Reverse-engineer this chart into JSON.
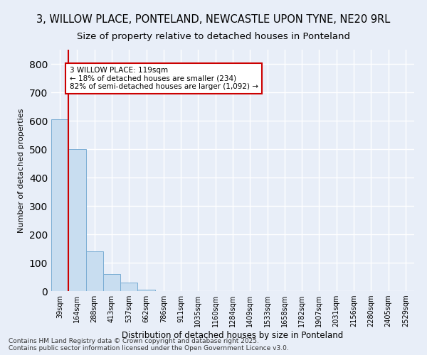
{
  "title": "3, WILLOW PLACE, PONTELAND, NEWCASTLE UPON TYNE, NE20 9RL",
  "subtitle": "Size of property relative to detached houses in Ponteland",
  "xlabel": "Distribution of detached houses by size in Ponteland",
  "ylabel": "Number of detached properties",
  "bins": [
    "39sqm",
    "164sqm",
    "288sqm",
    "413sqm",
    "537sqm",
    "662sqm",
    "786sqm",
    "911sqm",
    "1035sqm",
    "1160sqm",
    "1284sqm",
    "1409sqm",
    "1533sqm",
    "1658sqm",
    "1782sqm",
    "1907sqm",
    "2031sqm",
    "2156sqm",
    "2280sqm",
    "2405sqm",
    "2529sqm"
  ],
  "values": [
    605,
    500,
    140,
    60,
    30,
    5,
    0,
    0,
    0,
    0,
    0,
    0,
    0,
    0,
    0,
    0,
    0,
    0,
    0,
    0,
    0
  ],
  "bar_color": "#c8ddf0",
  "bar_edge_color": "#7aadd4",
  "background_color": "#e8eef8",
  "grid_color": "#ffffff",
  "property_line_x": 0.5,
  "property_line_color": "#cc0000",
  "annotation_text": "3 WILLOW PLACE: 119sqm\n← 18% of detached houses are smaller (234)\n82% of semi-detached houses are larger (1,092) →",
  "annotation_box_color": "#ffffff",
  "annotation_border_color": "#cc0000",
  "ylim": [
    0,
    850
  ],
  "yticks": [
    0,
    100,
    200,
    300,
    400,
    500,
    600,
    700,
    800
  ],
  "footnote": "Contains HM Land Registry data © Crown copyright and database right 2025.\nContains public sector information licensed under the Open Government Licence v3.0.",
  "title_fontsize": 10.5,
  "subtitle_fontsize": 9.5,
  "annotation_fontsize": 7.5,
  "tick_label_fontsize": 7,
  "ylabel_fontsize": 8,
  "xlabel_fontsize": 8.5
}
